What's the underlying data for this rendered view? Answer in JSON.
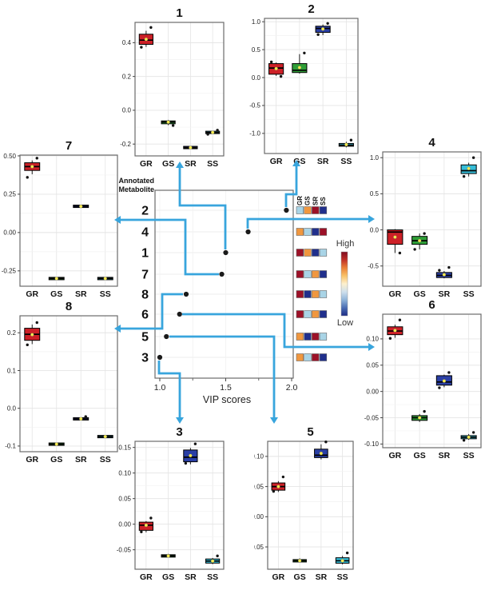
{
  "colors": {
    "groups": {
      "GR": "#cd2027",
      "GS": "#2f9e37",
      "SR": "#2a3fa5",
      "SS": "#35bdd8"
    },
    "mean_dot": "#f8ec4f",
    "outlier": "#141414",
    "vip_dot": "#1a1a1a",
    "arrow": "#38a5dd",
    "panel_border": "#6b6b6b",
    "grid_major": "#e4e4e4",
    "grid_minor": "#f2f2f2",
    "heatmap": {
      "darkred": "#9c1127",
      "orange": "#f0973f",
      "lightblue": "#a9d4e6",
      "darkblue": "#202f8c"
    },
    "gradient": [
      "#7f0c20",
      "#c03028",
      "#ea8038",
      "#f9c268",
      "#fdf0cd",
      "#cfe0ed",
      "#8fb4d9",
      "#4a6cb3",
      "#1c2b85"
    ]
  },
  "chart_data": [
    {
      "id": "vip",
      "type": "scatter",
      "xlabel": "VIP scores",
      "ylabel_lines": [
        "Annotated",
        "Metabolite"
      ],
      "categories": [
        "2",
        "4",
        "1",
        "7",
        "8",
        "6",
        "5",
        "3"
      ],
      "values": [
        1.96,
        1.67,
        1.5,
        1.47,
        1.2,
        1.15,
        1.05,
        1.0
      ],
      "xticks": [
        1.0,
        1.5,
        2.0
      ],
      "xtick_labels": [
        "1.0",
        "1.5",
        "2.0"
      ],
      "xtick_minor": [
        1.25,
        1.75
      ],
      "xlim": [
        0.96,
        2.01
      ]
    },
    {
      "id": "heatmap",
      "type": "heatmap",
      "columns": [
        "GR",
        "GS",
        "SR",
        "SS"
      ],
      "rows": [
        "2",
        "4",
        "1",
        "7",
        "8",
        "6",
        "5",
        "3"
      ],
      "cells": [
        [
          "lightblue",
          "orange",
          "darkred",
          "darkblue"
        ],
        [
          "orange",
          "lightblue",
          "darkblue",
          "darkred"
        ],
        [
          "darkred",
          "orange",
          "darkblue",
          "lightblue"
        ],
        [
          "darkred",
          "lightblue",
          "orange",
          "darkblue"
        ],
        [
          "darkred",
          "darkblue",
          "orange",
          "lightblue"
        ],
        [
          "darkred",
          "lightblue",
          "orange",
          "darkblue"
        ],
        [
          "orange",
          "darkblue",
          "darkred",
          "lightblue"
        ],
        [
          "orange",
          "lightblue",
          "darkred",
          "darkblue"
        ]
      ],
      "legend_high": "High",
      "legend_low": "Low"
    },
    {
      "id": "1",
      "type": "box",
      "title": "1",
      "categories": [
        "GR",
        "GS",
        "SR",
        "SS"
      ],
      "ytick_values": [
        0.4,
        0.2,
        0.0,
        -0.2
      ],
      "ytick_labels": [
        "0.4",
        "0.2",
        "0.0",
        "-0.2"
      ],
      "ylim": [
        -0.27,
        0.52
      ],
      "series": [
        {
          "name": "GR",
          "lo": 0.375,
          "q1": 0.39,
          "median": 0.415,
          "q3": 0.45,
          "hi": 0.47,
          "mean": 0.42,
          "outliers": [
            0.49,
            0.373
          ]
        },
        {
          "name": "GS",
          "lo": -0.088,
          "q1": -0.08,
          "median": -0.07,
          "q3": -0.063,
          "hi": -0.057,
          "mean": -0.07,
          "outliers": [
            -0.09
          ]
        },
        {
          "name": "SR",
          "lo": -0.228,
          "q1": -0.224,
          "median": -0.221,
          "q3": -0.217,
          "hi": -0.213,
          "mean": -0.221,
          "outliers": []
        },
        {
          "name": "SS",
          "lo": -0.14,
          "q1": -0.136,
          "median": -0.131,
          "q3": -0.126,
          "hi": -0.121,
          "mean": -0.131,
          "outliers": [
            -0.118,
            -0.142
          ]
        }
      ]
    },
    {
      "id": "2",
      "type": "box",
      "title": "2",
      "categories": [
        "GR",
        "GS",
        "SR",
        "SS"
      ],
      "ytick_values": [
        1.0,
        0.5,
        0.0,
        -0.5,
        -1.0
      ],
      "ytick_labels": [
        "1.0",
        "0.5",
        "0.0",
        "-0.5",
        "-1.0"
      ],
      "ylim": [
        -1.36,
        1.06
      ],
      "series": [
        {
          "name": "GR",
          "lo": 0.03,
          "q1": 0.06,
          "median": 0.17,
          "q3": 0.25,
          "hi": 0.27,
          "mean": 0.16,
          "outliers": [
            0.02,
            0.28
          ]
        },
        {
          "name": "GS",
          "lo": 0.07,
          "q1": 0.09,
          "median": 0.13,
          "q3": 0.25,
          "hi": 0.42,
          "mean": 0.18,
          "outliers": [
            0.44
          ]
        },
        {
          "name": "SR",
          "lo": 0.76,
          "q1": 0.81,
          "median": 0.88,
          "q3": 0.92,
          "hi": 0.95,
          "mean": 0.87,
          "outliers": [
            0.97,
            0.77
          ]
        },
        {
          "name": "SS",
          "lo": -1.25,
          "q1": -1.23,
          "median": -1.21,
          "q3": -1.18,
          "hi": -1.15,
          "mean": -1.2,
          "outliers": [
            -1.12
          ]
        }
      ]
    },
    {
      "id": "7",
      "type": "box",
      "title": "7",
      "categories": [
        "GR",
        "GS",
        "SR",
        "SS"
      ],
      "ytick_values": [
        0.5,
        0.25,
        0.0,
        -0.25
      ],
      "ytick_labels": [
        "0.50",
        "0.25",
        "0.00",
        "-0.25"
      ],
      "ylim": [
        -0.35,
        0.505
      ],
      "series": [
        {
          "name": "GR",
          "lo": 0.38,
          "q1": 0.405,
          "median": 0.43,
          "q3": 0.455,
          "hi": 0.47,
          "mean": 0.43,
          "outliers": [
            0.485,
            0.36
          ]
        },
        {
          "name": "GS",
          "lo": -0.305,
          "q1": -0.302,
          "median": -0.3,
          "q3": -0.298,
          "hi": -0.295,
          "mean": -0.3,
          "outliers": []
        },
        {
          "name": "SR",
          "lo": 0.165,
          "q1": 0.168,
          "median": 0.171,
          "q3": 0.174,
          "hi": 0.177,
          "mean": 0.171,
          "outliers": []
        },
        {
          "name": "SS",
          "lo": -0.305,
          "q1": -0.302,
          "median": -0.3,
          "q3": -0.298,
          "hi": -0.295,
          "mean": -0.3,
          "outliers": []
        }
      ]
    },
    {
      "id": "4",
      "type": "box",
      "title": "4",
      "categories": [
        "GR",
        "GS",
        "SR",
        "SS"
      ],
      "ytick_values": [
        1.0,
        0.5,
        0.0,
        -0.5
      ],
      "ytick_labels": [
        "1.0",
        "0.5",
        "0.0",
        "-0.5"
      ],
      "ylim": [
        -0.78,
        1.08
      ],
      "series": [
        {
          "name": "GR",
          "lo": -0.32,
          "q1": -0.2,
          "median": -0.03,
          "q3": 0.0,
          "hi": 0.01,
          "mean": -0.1,
          "outliers": [
            -0.32
          ]
        },
        {
          "name": "GS",
          "lo": -0.27,
          "q1": -0.2,
          "median": -0.15,
          "q3": -0.09,
          "hi": -0.05,
          "mean": -0.15,
          "outliers": [
            -0.05,
            -0.27
          ]
        },
        {
          "name": "SR",
          "lo": -0.67,
          "q1": -0.66,
          "median": -0.63,
          "q3": -0.59,
          "hi": -0.57,
          "mean": -0.62,
          "outliers": [
            -0.52,
            -0.56
          ]
        },
        {
          "name": "SS",
          "lo": 0.74,
          "q1": 0.78,
          "median": 0.82,
          "q3": 0.9,
          "hi": 0.93,
          "mean": 0.85,
          "outliers": [
            1.0,
            0.74
          ]
        }
      ]
    },
    {
      "id": "8",
      "type": "box",
      "title": "8",
      "categories": [
        "GR",
        "GS",
        "SR",
        "SS"
      ],
      "ytick_values": [
        0.2,
        0.1,
        0.0,
        -0.1
      ],
      "ytick_labels": [
        "0.2",
        "0.1",
        "0.0",
        "-0.1"
      ],
      "ylim": [
        -0.115,
        0.245
      ],
      "series": [
        {
          "name": "GR",
          "lo": 0.17,
          "q1": 0.18,
          "median": 0.196,
          "q3": 0.212,
          "hi": 0.222,
          "mean": 0.195,
          "outliers": [
            0.227,
            0.168
          ]
        },
        {
          "name": "GS",
          "lo": -0.098,
          "q1": -0.097,
          "median": -0.095,
          "q3": -0.093,
          "hi": -0.091,
          "mean": -0.095,
          "outliers": []
        },
        {
          "name": "SR",
          "lo": -0.032,
          "q1": -0.03,
          "median": -0.028,
          "q3": -0.026,
          "hi": -0.024,
          "mean": -0.028,
          "outliers": [
            -0.022
          ]
        },
        {
          "name": "SS",
          "lo": -0.078,
          "q1": -0.077,
          "median": -0.075,
          "q3": -0.073,
          "hi": -0.071,
          "mean": -0.075,
          "outliers": []
        }
      ]
    },
    {
      "id": "6",
      "type": "box",
      "title": "6",
      "categories": [
        "GR",
        "GS",
        "SR",
        "SS"
      ],
      "ytick_values": [
        0.1,
        0.05,
        0.0,
        -0.05,
        -0.1
      ],
      "ytick_labels": [
        "0.10",
        "0.05",
        "0.00",
        "-0.05",
        "-0.10"
      ],
      "ylim": [
        -0.107,
        0.147
      ],
      "series": [
        {
          "name": "GR",
          "lo": 0.102,
          "q1": 0.108,
          "median": 0.115,
          "q3": 0.123,
          "hi": 0.127,
          "mean": 0.116,
          "outliers": [
            0.136,
            0.101
          ]
        },
        {
          "name": "GS",
          "lo": -0.058,
          "q1": -0.055,
          "median": -0.05,
          "q3": -0.046,
          "hi": -0.043,
          "mean": -0.05,
          "outliers": [
            -0.038
          ]
        },
        {
          "name": "SR",
          "lo": 0.008,
          "q1": 0.012,
          "median": 0.018,
          "q3": 0.03,
          "hi": 0.032,
          "mean": 0.02,
          "outliers": [
            0.036,
            0.007
          ]
        },
        {
          "name": "SS",
          "lo": -0.092,
          "q1": -0.09,
          "median": -0.087,
          "q3": -0.084,
          "hi": -0.081,
          "mean": -0.087,
          "outliers": [
            -0.078,
            -0.093
          ]
        }
      ]
    },
    {
      "id": "3",
      "type": "box",
      "title": "3",
      "categories": [
        "GR",
        "GS",
        "SR",
        "SS"
      ],
      "ytick_values": [
        0.15,
        0.1,
        0.05,
        0.0,
        -0.05
      ],
      "ytick_labels": [
        "0.15",
        "0.10",
        "0.05",
        "0.00",
        "-0.05"
      ],
      "ylim": [
        -0.088,
        0.162
      ],
      "series": [
        {
          "name": "GR",
          "lo": -0.016,
          "q1": -0.012,
          "median": -0.002,
          "q3": 0.004,
          "hi": 0.006,
          "mean": -0.002,
          "outliers": [
            0.012,
            -0.015
          ]
        },
        {
          "name": "GS",
          "lo": -0.065,
          "q1": -0.064,
          "median": -0.062,
          "q3": -0.06,
          "hi": -0.058,
          "mean": -0.062,
          "outliers": []
        },
        {
          "name": "SR",
          "lo": 0.117,
          "q1": 0.122,
          "median": 0.131,
          "q3": 0.145,
          "hi": 0.149,
          "mean": 0.134,
          "outliers": [
            0.157,
            0.119
          ]
        },
        {
          "name": "SS",
          "lo": -0.078,
          "q1": -0.076,
          "median": -0.072,
          "q3": -0.068,
          "hi": -0.066,
          "mean": -0.072,
          "outliers": [
            -0.062
          ]
        }
      ]
    },
    {
      "id": "5",
      "type": "box",
      "title": "5",
      "categories": [
        "GR",
        "GS",
        "SR",
        "SS"
      ],
      "ytick_values": [
        0.1,
        0.05,
        0.0,
        -0.05
      ],
      "ytick_labels": [
        "0.10",
        "0.05",
        "0.00",
        "-0.05"
      ],
      "ylim": [
        -0.087,
        0.125
      ],
      "series": [
        {
          "name": "GR",
          "lo": 0.041,
          "q1": 0.044,
          "median": 0.05,
          "q3": 0.056,
          "hi": 0.059,
          "mean": 0.05,
          "outliers": [
            0.066,
            0.042
          ]
        },
        {
          "name": "GS",
          "lo": -0.076,
          "q1": -0.075,
          "median": -0.073,
          "q3": -0.071,
          "hi": -0.069,
          "mean": -0.073,
          "outliers": []
        },
        {
          "name": "SR",
          "lo": 0.095,
          "q1": 0.098,
          "median": 0.102,
          "q3": 0.112,
          "hi": 0.12,
          "mean": 0.105,
          "outliers": [
            0.124
          ]
        },
        {
          "name": "SS",
          "lo": -0.079,
          "q1": -0.077,
          "median": -0.073,
          "q3": -0.068,
          "hi": -0.065,
          "mean": -0.073,
          "outliers": [
            -0.06
          ]
        }
      ]
    }
  ]
}
